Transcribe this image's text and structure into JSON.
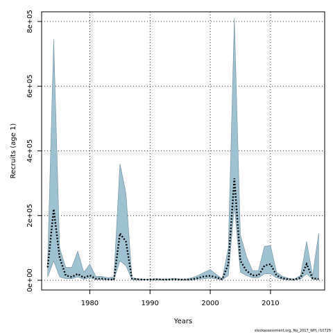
{
  "chart_data": {
    "type": "area",
    "xlabel": "Years",
    "ylabel": "Recruits (age 1)",
    "xlim": [
      1972,
      2019
    ],
    "ylim": [
      -30000,
      830000
    ],
    "xticks": [
      1980,
      1990,
      2000,
      2010
    ],
    "xtick_labels": [
      "1980",
      "1990",
      "2000",
      "2010"
    ],
    "yticks": [
      0,
      200000,
      400000,
      600000,
      800000
    ],
    "ytick_labels": [
      "0e+00",
      "2e+05",
      "4e+05",
      "6e+05",
      "8e+05"
    ],
    "grid": true,
    "colors": {
      "band": "#9fc2d3",
      "band_edge": "#6f8f9e",
      "median": "#000000",
      "grid": "#333333"
    },
    "x": [
      1973,
      1974,
      1975,
      1976,
      1977,
      1978,
      1979,
      1980,
      1981,
      1982,
      1983,
      1984,
      1985,
      1986,
      1987,
      1988,
      1989,
      1990,
      1991,
      1992,
      1993,
      1994,
      1995,
      1996,
      1997,
      1998,
      1999,
      2000,
      2001,
      2002,
      2003,
      2004,
      2005,
      2006,
      2007,
      2008,
      2009,
      2010,
      2011,
      2012,
      2013,
      2014,
      2015,
      2016,
      2017,
      2018
    ],
    "series": [
      {
        "role": "upper",
        "values": [
          60000,
          745000,
          100000,
          40000,
          40000,
          90000,
          25000,
          50000,
          12000,
          12000,
          8000,
          10000,
          360000,
          270000,
          8000,
          5000,
          3000,
          3000,
          5000,
          4000,
          4000,
          6000,
          4000,
          4000,
          8000,
          15000,
          25000,
          33000,
          18000,
          5000,
          100000,
          810000,
          140000,
          75000,
          30000,
          30000,
          105000,
          108000,
          25000,
          12000,
          6000,
          4000,
          15000,
          120000,
          15000,
          145000
        ]
      },
      {
        "role": "median",
        "values": [
          40000,
          220000,
          70000,
          15000,
          10000,
          20000,
          8000,
          15000,
          5000,
          5000,
          3000,
          2000,
          145000,
          120000,
          5000,
          3000,
          2000,
          2000,
          3000,
          2000,
          2000,
          3000,
          2000,
          2000,
          3000,
          7000,
          12000,
          14000,
          9000,
          3000,
          50000,
          315000,
          60000,
          30000,
          15000,
          15000,
          45000,
          50000,
          15000,
          6000,
          3000,
          2000,
          8000,
          50000,
          6000,
          4000
        ]
      },
      {
        "role": "lower",
        "values": [
          10000,
          60000,
          10000,
          5000,
          5000,
          10000,
          3000,
          8000,
          2000,
          2000,
          1000,
          1000,
          60000,
          45000,
          2000,
          1000,
          1000,
          1000,
          1000,
          1000,
          1000,
          1000,
          1000,
          1000,
          1000,
          3000,
          5000,
          7000,
          4000,
          1000,
          15000,
          230000,
          25000,
          15000,
          8000,
          8000,
          20000,
          20000,
          8000,
          3000,
          1000,
          1000,
          4000,
          20000,
          3000,
          1000
        ]
      }
    ]
  },
  "footnote": "stockassessment.org, No_2017_WH, r10725"
}
